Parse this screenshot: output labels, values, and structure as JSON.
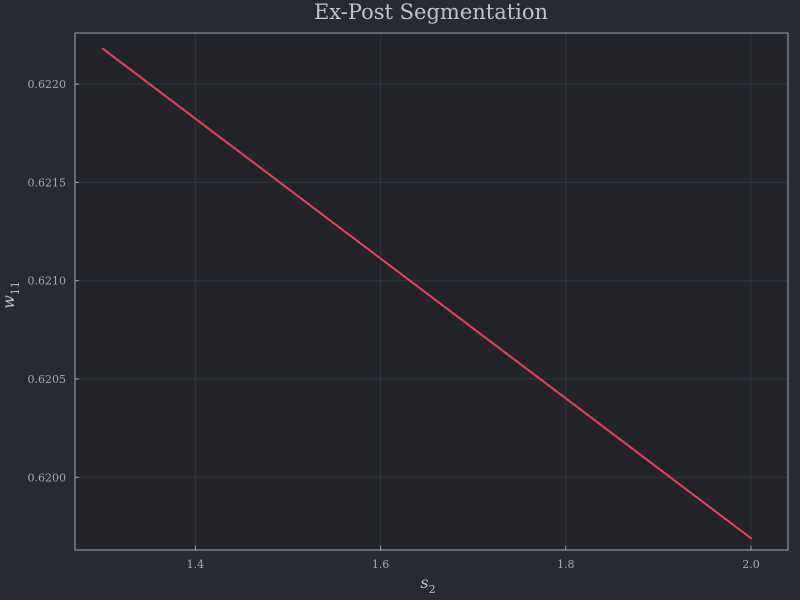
{
  "chart_data": {
    "type": "line",
    "title": "Ex-Post Segmentation",
    "xlabel": {
      "base": "s",
      "sub": "2"
    },
    "ylabel": {
      "base": "w",
      "sub": "11"
    },
    "xlim": [
      1.27,
      2.04
    ],
    "ylim": [
      0.61963,
      0.62226
    ],
    "xticks": [
      1.4,
      1.6,
      1.8,
      2.0
    ],
    "xtick_labels": [
      "1.4",
      "1.6",
      "1.8",
      "2.0"
    ],
    "yticks": [
      0.62,
      0.6205,
      0.621,
      0.6215,
      0.622
    ],
    "ytick_labels": [
      "0.6200",
      "0.6205",
      "0.6210",
      "0.6215",
      "0.6220"
    ],
    "grid": true,
    "series": [
      {
        "color": "#e8415f",
        "x": [
          1.3,
          2.0
        ],
        "y": [
          0.62218,
          0.61969
        ]
      }
    ],
    "colors": {
      "background": "#282a33",
      "plot_background": "#22242a",
      "frame": "#a3a8b0",
      "grid": "#31343c",
      "text": "#bfc4cc"
    }
  }
}
